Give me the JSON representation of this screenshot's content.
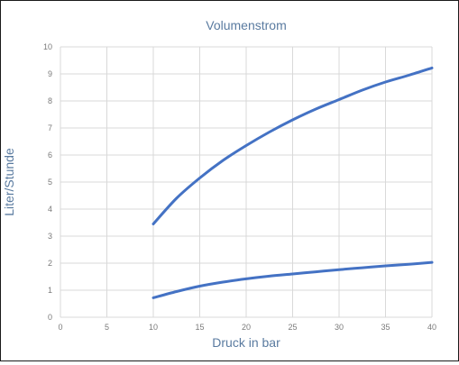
{
  "chart_data": {
    "type": "line",
    "title": "Volumenstrom",
    "xlabel": "Druck in bar",
    "ylabel": "Liter/Stunde",
    "xlim": [
      0,
      40
    ],
    "ylim": [
      0,
      10
    ],
    "x_ticks": [
      0,
      5,
      10,
      15,
      20,
      25,
      30,
      35,
      40
    ],
    "y_ticks": [
      0,
      1,
      2,
      3,
      4,
      5,
      6,
      7,
      8,
      9,
      10
    ],
    "grid": true,
    "legend": "none",
    "color": "#4472c4",
    "series": [
      {
        "x": [
          10,
          12.5,
          15,
          17.5,
          20,
          22.5,
          25,
          27.5,
          30,
          32.5,
          35,
          37.5,
          40
        ],
        "values": [
          3.45,
          4.4,
          5.15,
          5.8,
          6.35,
          6.85,
          7.3,
          7.7,
          8.05,
          8.4,
          8.7,
          8.95,
          9.22
        ]
      },
      {
        "x": [
          10,
          12.5,
          15,
          17.5,
          20,
          22.5,
          25,
          27.5,
          30,
          32.5,
          35,
          37.5,
          40
        ],
        "values": [
          0.72,
          0.95,
          1.15,
          1.3,
          1.42,
          1.52,
          1.6,
          1.68,
          1.76,
          1.83,
          1.9,
          1.96,
          2.03
        ]
      }
    ]
  }
}
